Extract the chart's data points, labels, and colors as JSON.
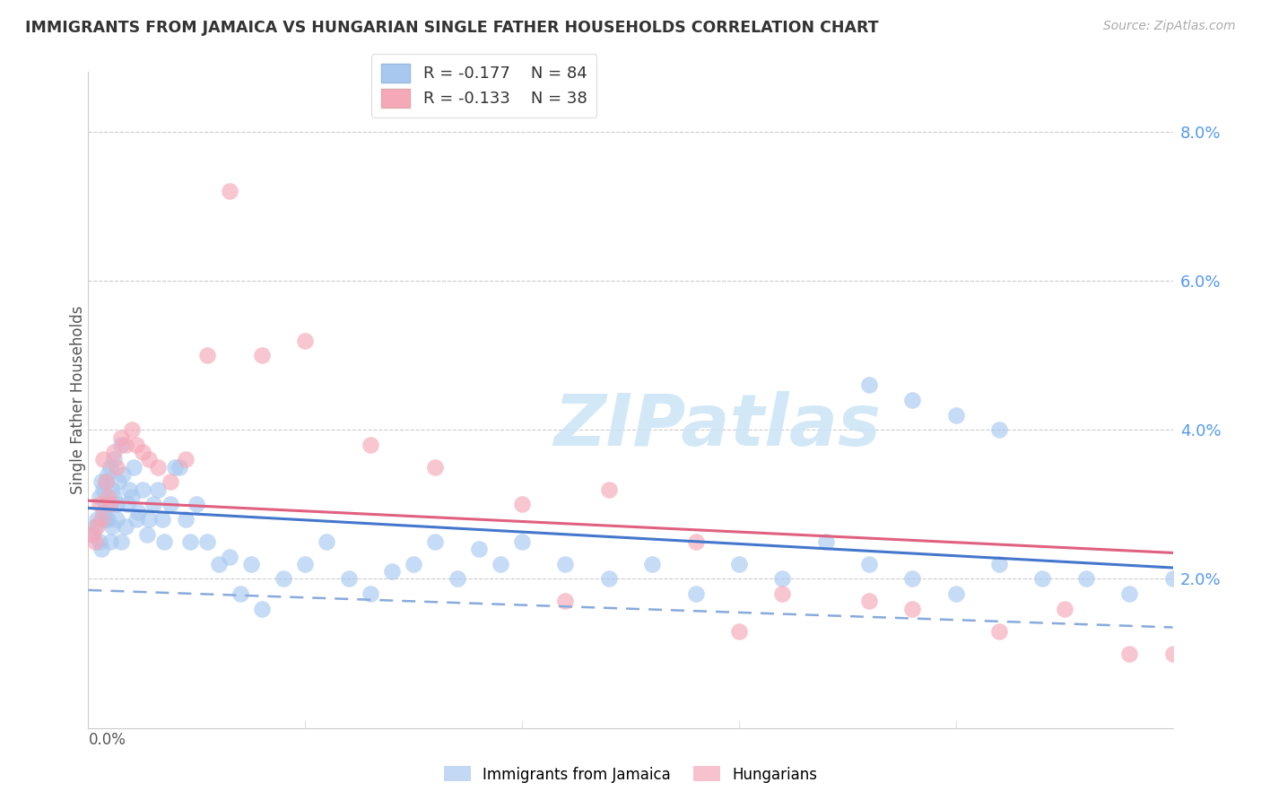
{
  "title": "IMMIGRANTS FROM JAMAICA VS HUNGARIAN SINGLE FATHER HOUSEHOLDS CORRELATION CHART",
  "source": "Source: ZipAtlas.com",
  "ylabel": "Single Father Households",
  "right_yticks": [
    "8.0%",
    "6.0%",
    "4.0%",
    "2.0%"
  ],
  "right_ytick_vals": [
    0.08,
    0.06,
    0.04,
    0.02
  ],
  "xmin": 0.0,
  "xmax": 0.5,
  "ymin": 0.0,
  "ymax": 0.088,
  "legend_blue_r": "R = -0.177",
  "legend_blue_n": "N = 84",
  "legend_pink_r": "R = -0.133",
  "legend_pink_n": "N = 38",
  "blue_color": "#a8c8f0",
  "pink_color": "#f5a8b8",
  "blue_line_color": "#4477cc",
  "pink_line_color": "#e06080",
  "blue_dash_color": "#88aadd",
  "watermark_text": "ZIPatlas",
  "blue_intercept": 0.0295,
  "blue_slope": -0.016,
  "pink_intercept": 0.0305,
  "pink_slope": -0.014,
  "blue_dash_intercept": 0.0185,
  "blue_dash_slope": -0.01,
  "blue_x": [
    0.002,
    0.003,
    0.004,
    0.005,
    0.005,
    0.006,
    0.006,
    0.007,
    0.007,
    0.008,
    0.008,
    0.008,
    0.009,
    0.009,
    0.01,
    0.01,
    0.01,
    0.011,
    0.011,
    0.012,
    0.012,
    0.013,
    0.013,
    0.014,
    0.015,
    0.015,
    0.016,
    0.017,
    0.018,
    0.019,
    0.02,
    0.021,
    0.022,
    0.023,
    0.025,
    0.027,
    0.028,
    0.03,
    0.032,
    0.034,
    0.035,
    0.038,
    0.04,
    0.042,
    0.045,
    0.047,
    0.05,
    0.055,
    0.06,
    0.065,
    0.07,
    0.075,
    0.08,
    0.09,
    0.1,
    0.11,
    0.12,
    0.13,
    0.14,
    0.15,
    0.16,
    0.17,
    0.18,
    0.19,
    0.2,
    0.22,
    0.24,
    0.26,
    0.28,
    0.3,
    0.32,
    0.34,
    0.36,
    0.38,
    0.4,
    0.42,
    0.44,
    0.46,
    0.48,
    0.5,
    0.36,
    0.38,
    0.4,
    0.42
  ],
  "blue_y": [
    0.026,
    0.027,
    0.028,
    0.031,
    0.025,
    0.024,
    0.033,
    0.029,
    0.032,
    0.03,
    0.033,
    0.028,
    0.034,
    0.028,
    0.035,
    0.025,
    0.03,
    0.032,
    0.027,
    0.031,
    0.036,
    0.028,
    0.03,
    0.033,
    0.038,
    0.025,
    0.034,
    0.027,
    0.03,
    0.032,
    0.031,
    0.035,
    0.028,
    0.029,
    0.032,
    0.026,
    0.028,
    0.03,
    0.032,
    0.028,
    0.025,
    0.03,
    0.035,
    0.035,
    0.028,
    0.025,
    0.03,
    0.025,
    0.022,
    0.023,
    0.018,
    0.022,
    0.016,
    0.02,
    0.022,
    0.025,
    0.02,
    0.018,
    0.021,
    0.022,
    0.025,
    0.02,
    0.024,
    0.022,
    0.025,
    0.022,
    0.02,
    0.022,
    0.018,
    0.022,
    0.02,
    0.025,
    0.022,
    0.02,
    0.018,
    0.022,
    0.02,
    0.02,
    0.018,
    0.02,
    0.046,
    0.044,
    0.042,
    0.04
  ],
  "pink_x": [
    0.002,
    0.003,
    0.004,
    0.005,
    0.006,
    0.007,
    0.008,
    0.009,
    0.01,
    0.012,
    0.013,
    0.015,
    0.017,
    0.02,
    0.022,
    0.025,
    0.028,
    0.032,
    0.038,
    0.045,
    0.055,
    0.065,
    0.08,
    0.1,
    0.13,
    0.16,
    0.2,
    0.24,
    0.28,
    0.32,
    0.36,
    0.38,
    0.42,
    0.45,
    0.48,
    0.5,
    0.22,
    0.3
  ],
  "pink_y": [
    0.026,
    0.025,
    0.027,
    0.03,
    0.028,
    0.036,
    0.033,
    0.031,
    0.03,
    0.037,
    0.035,
    0.039,
    0.038,
    0.04,
    0.038,
    0.037,
    0.036,
    0.035,
    0.033,
    0.036,
    0.05,
    0.072,
    0.05,
    0.052,
    0.038,
    0.035,
    0.03,
    0.032,
    0.025,
    0.018,
    0.017,
    0.016,
    0.013,
    0.016,
    0.01,
    0.01,
    0.017,
    0.013
  ]
}
